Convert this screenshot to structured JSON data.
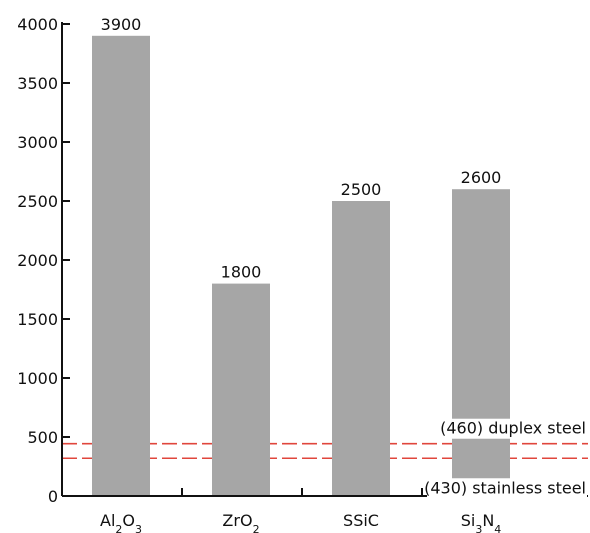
{
  "chart_data": {
    "type": "bar",
    "categories": [
      {
        "base": "Al",
        "sub1": "2",
        "mid": "O",
        "sub2": "3"
      },
      {
        "base": "ZrO",
        "sub1": "2",
        "mid": "",
        "sub2": ""
      },
      {
        "base": "SSiC",
        "sub1": "",
        "mid": "",
        "sub2": ""
      },
      {
        "base": "Si",
        "sub1": "3",
        "mid": "N",
        "sub2": "4"
      }
    ],
    "values": [
      3900,
      1800,
      2500,
      2600
    ],
    "data_labels": [
      "3900",
      "1800",
      "2500",
      "2600"
    ],
    "ylim": [
      0,
      4000
    ],
    "yticks": [
      "0",
      "500",
      "1000",
      "1500",
      "2000",
      "2500",
      "3000",
      "3500",
      "4000"
    ],
    "reference_lines": [
      {
        "value": 460,
        "label": "(460) duplex steel"
      },
      {
        "value": 430,
        "label": "(430) stainless steel"
      }
    ],
    "colors": {
      "bar": "#a6a6a6",
      "reference": "#e0463c",
      "axis": "#111111"
    },
    "grid": false
  }
}
